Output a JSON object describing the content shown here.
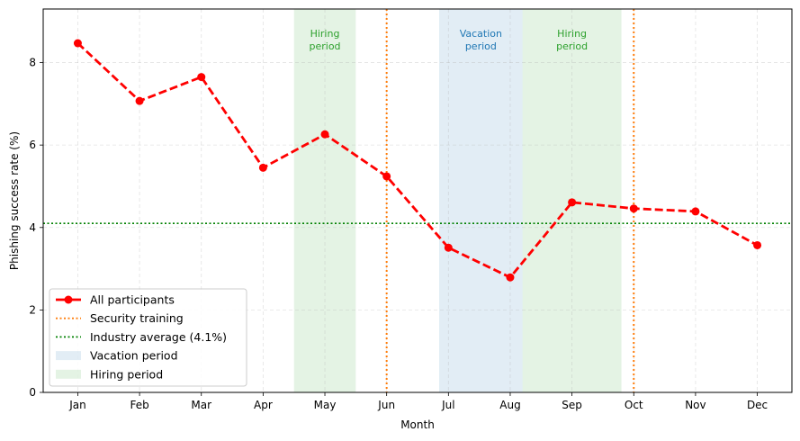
{
  "chart_data": {
    "type": "line",
    "xlabel": "Month",
    "ylabel": "Phishing success rate (%)",
    "categories": [
      "Jan",
      "Feb",
      "Mar",
      "Apr",
      "May",
      "Jun",
      "Jul",
      "Aug",
      "Sep",
      "Oct",
      "Nov",
      "Dec"
    ],
    "ylim": [
      0,
      9.3
    ],
    "yticks": [
      0,
      2,
      4,
      6,
      8
    ],
    "grid": true,
    "series": [
      {
        "name": "All participants",
        "color": "#ff0000",
        "style": "dashed",
        "marker": "circle",
        "values": [
          8.47,
          7.07,
          7.65,
          5.45,
          6.26,
          5.24,
          3.51,
          2.79,
          4.61,
          4.46,
          4.39,
          3.57
        ]
      }
    ],
    "vlines": [
      {
        "x": 5,
        "label": "Security training",
        "color": "#ff7f0e",
        "style": "dotted"
      },
      {
        "x": 9,
        "label": "Security training",
        "color": "#ff7f0e",
        "style": "dotted"
      }
    ],
    "hline": {
      "y": 4.1,
      "label": "Industry average (4.1%)",
      "color": "#008000",
      "style": "dotted"
    },
    "bands": [
      {
        "x0": 3.5,
        "x1": 4.5,
        "kind": "hiring",
        "text": "Hiring\nperiod",
        "fill": "#2ca02c",
        "text_color": "#2ca02c"
      },
      {
        "x0": 5.85,
        "x1": 7.2,
        "kind": "vacation",
        "text": "Vacation\nperiod",
        "fill": "#1f77b4",
        "text_color": "#1f77b4"
      },
      {
        "x0": 7.2,
        "x1": 8.8,
        "kind": "hiring",
        "text": "Hiring\nperiod",
        "fill": "#2ca02c",
        "text_color": "#2ca02c"
      }
    ],
    "legend": {
      "placement": "lower-left",
      "entries": [
        {
          "label": "All participants",
          "kind": "line-marker",
          "color": "#ff0000"
        },
        {
          "label": "Security training",
          "kind": "dotted",
          "color": "#ff7f0e"
        },
        {
          "label": "Industry average (4.1%)",
          "kind": "dotted",
          "color": "#008000"
        },
        {
          "label": "Vacation period",
          "kind": "patch",
          "color": "#1f77b4"
        },
        {
          "label": "Hiring period",
          "kind": "patch",
          "color": "#2ca02c"
        }
      ]
    }
  }
}
